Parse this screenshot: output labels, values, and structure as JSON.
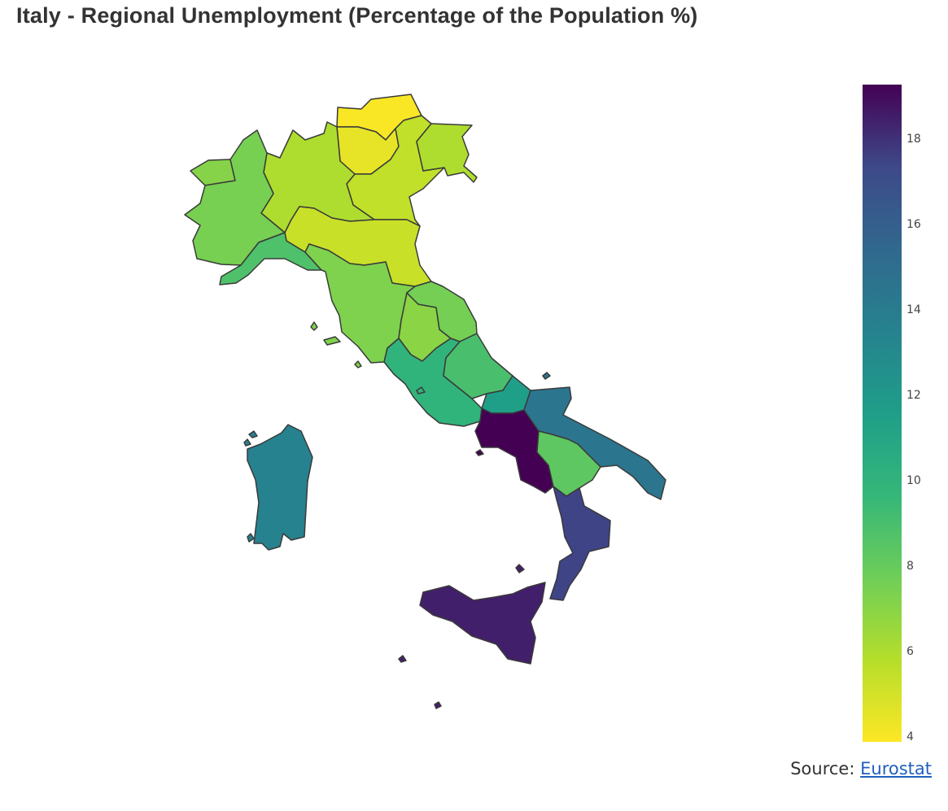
{
  "title": "Italy - Regional Unemployment (Percentage of the Population %)",
  "source": {
    "label": "Source: ",
    "link_text": "Eurostat"
  },
  "colorbar": {
    "colorscale": "viridis_reversed",
    "range": [
      3.9,
      19.3
    ],
    "ticks": [
      "4",
      "6",
      "8",
      "10",
      "12",
      "14",
      "16",
      "18"
    ],
    "tick_values": [
      4,
      6,
      8,
      10,
      12,
      14,
      16,
      18
    ]
  },
  "chart_data": {
    "type": "choropleth",
    "title": "Italy - Regional Unemployment (Percentage of the Population %)",
    "unit": "%",
    "regions": [
      {
        "name": "Trentino-Alto Adige/Südtirol (Bolzano)",
        "value": 4.0
      },
      {
        "name": "Trentino-Alto Adige/Südtirol (Trento)",
        "value": 4.5
      },
      {
        "name": "Veneto",
        "value": 5.5
      },
      {
        "name": "Friuli-Venezia Giulia",
        "value": 6.0
      },
      {
        "name": "Lombardia",
        "value": 6.0
      },
      {
        "name": "Emilia-Romagna",
        "value": 5.3
      },
      {
        "name": "Valle d'Aosta",
        "value": 7.1
      },
      {
        "name": "Piemonte",
        "value": 7.5
      },
      {
        "name": "Liguria",
        "value": 8.8
      },
      {
        "name": "Toscana",
        "value": 7.3
      },
      {
        "name": "Umbria",
        "value": 7.0
      },
      {
        "name": "Marche",
        "value": 7.6
      },
      {
        "name": "Lazio",
        "value": 10.0
      },
      {
        "name": "Abruzzo",
        "value": 9.0
      },
      {
        "name": "Molise",
        "value": 11.5
      },
      {
        "name": "Campania",
        "value": 19.3
      },
      {
        "name": "Puglia",
        "value": 14.5
      },
      {
        "name": "Basilicata",
        "value": 8.3
      },
      {
        "name": "Calabria",
        "value": 17.5
      },
      {
        "name": "Sicilia",
        "value": 18.5
      },
      {
        "name": "Sardegna",
        "value": 13.5
      }
    ]
  }
}
